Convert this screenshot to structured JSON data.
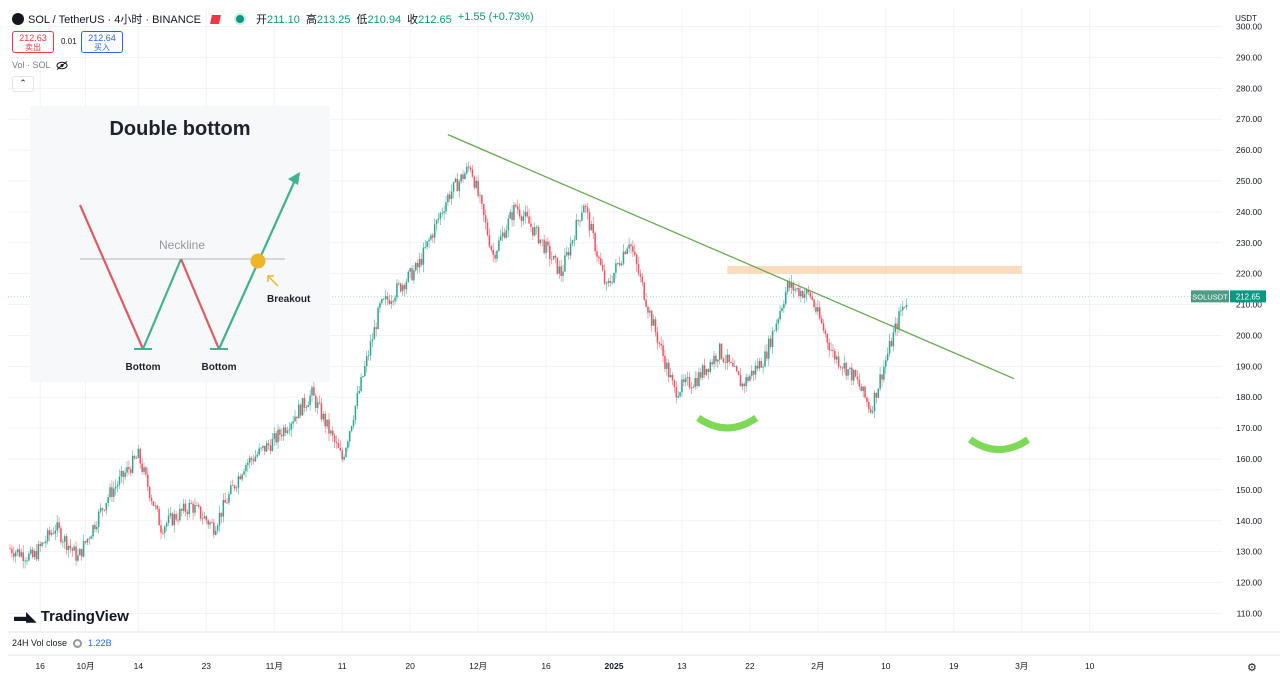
{
  "header": {
    "symbol": "SOL / TetherUS · 4小时 · BINANCE",
    "ohlc": [
      {
        "label": "开",
        "value": "211.10"
      },
      {
        "label": "高",
        "value": "213.25"
      },
      {
        "label": "低",
        "value": "210.94"
      },
      {
        "label": "收",
        "value": "212.65"
      }
    ],
    "change": "+1.55 (+0.73%)"
  },
  "trade": {
    "sell_price": "212.63",
    "sell_label": "卖出",
    "spread": "0.01",
    "buy_price": "212.64",
    "buy_label": "买入"
  },
  "indicator": {
    "label": "Vol · SOL"
  },
  "collapse_glyph": "⌃",
  "currency": "USDT",
  "symbol_tag": "SOLUSDT",
  "last_price": "212.65",
  "inset": {
    "title": "Double bottom",
    "neckline": "Neckline",
    "breakout": "Breakout",
    "bottom_left": "Bottom",
    "bottom_right": "Bottom"
  },
  "brand": "TradingView",
  "footer": {
    "label": "24H Vol close",
    "value": "1.22B"
  },
  "colors": {
    "up": "#089981",
    "down": "#f23645",
    "trendline": "#6aa84f",
    "resistance_band": "#f6b26b",
    "bottom_arc": "#7ed957",
    "inset_up": "#3fb28f",
    "inset_down": "#e05a62",
    "breakout_dot": "#f0b429"
  },
  "icons": [
    "sol-logo-icon",
    "flag-icon",
    "status-dot-icon",
    "eye-icon",
    "tradingview-logo-icon",
    "gear-icon"
  ],
  "chart_data": {
    "type": "candlestick",
    "title": "SOL / TetherUS · 4小时 · BINANCE",
    "y_ticks": [
      "300.00",
      "290.00",
      "280.00",
      "270.00",
      "260.00",
      "250.00",
      "240.00",
      "230.00",
      "220.00",
      "210.00",
      "200.00",
      "190.00",
      "180.00",
      "170.00",
      "160.00",
      "150.00",
      "140.00",
      "130.00",
      "120.00",
      "110.00"
    ],
    "ylim": [
      104,
      306
    ],
    "x_ticks": [
      "16",
      "10月",
      "14",
      "23",
      "11月",
      "11",
      "20",
      "12月",
      "16",
      "2025",
      "13",
      "22",
      "2月",
      "10",
      "19",
      "3月",
      "10"
    ],
    "x_tick_index": [
      4,
      10,
      17,
      26,
      35,
      44,
      53,
      62,
      71,
      80,
      89,
      98,
      107,
      116,
      125,
      134,
      143
    ],
    "close_anchors": [
      {
        "i": 0,
        "p": 131
      },
      {
        "i": 3,
        "p": 128
      },
      {
        "i": 6,
        "p": 138
      },
      {
        "i": 9,
        "p": 128
      },
      {
        "i": 13,
        "p": 148
      },
      {
        "i": 17,
        "p": 161
      },
      {
        "i": 20,
        "p": 138
      },
      {
        "i": 24,
        "p": 145
      },
      {
        "i": 27,
        "p": 138
      },
      {
        "i": 31,
        "p": 158
      },
      {
        "i": 35,
        "p": 166
      },
      {
        "i": 40,
        "p": 181
      },
      {
        "i": 44,
        "p": 160
      },
      {
        "i": 49,
        "p": 209
      },
      {
        "i": 54,
        "p": 222
      },
      {
        "i": 58,
        "p": 245
      },
      {
        "i": 61,
        "p": 255
      },
      {
        "i": 64,
        "p": 226
      },
      {
        "i": 67,
        "p": 242
      },
      {
        "i": 70,
        "p": 232
      },
      {
        "i": 73,
        "p": 220
      },
      {
        "i": 76,
        "p": 243
      },
      {
        "i": 79,
        "p": 215
      },
      {
        "i": 82,
        "p": 231
      },
      {
        "i": 85,
        "p": 205
      },
      {
        "i": 88,
        "p": 182
      },
      {
        "i": 91,
        "p": 186
      },
      {
        "i": 94,
        "p": 195
      },
      {
        "i": 97,
        "p": 184
      },
      {
        "i": 100,
        "p": 193
      },
      {
        "i": 103,
        "p": 216
      },
      {
        "i": 106,
        "p": 213
      },
      {
        "i": 109,
        "p": 194
      },
      {
        "i": 112,
        "p": 186
      },
      {
        "i": 114,
        "p": 176
      },
      {
        "i": 116,
        "p": 192
      },
      {
        "i": 118,
        "p": 208
      },
      {
        "i": 119,
        "p": 212.65
      }
    ],
    "last_price": 212.65,
    "trendline": {
      "from_index": 58,
      "from_price": 265,
      "to_index": 133,
      "to_price": 186
    },
    "resistance_band": {
      "from_index": 95,
      "to_index": 134,
      "low": 220,
      "high": 222.5
    },
    "bottom_markers": [
      {
        "index": 95,
        "price": 172
      },
      {
        "index": 131,
        "price": 165
      }
    ],
    "grid": true
  }
}
